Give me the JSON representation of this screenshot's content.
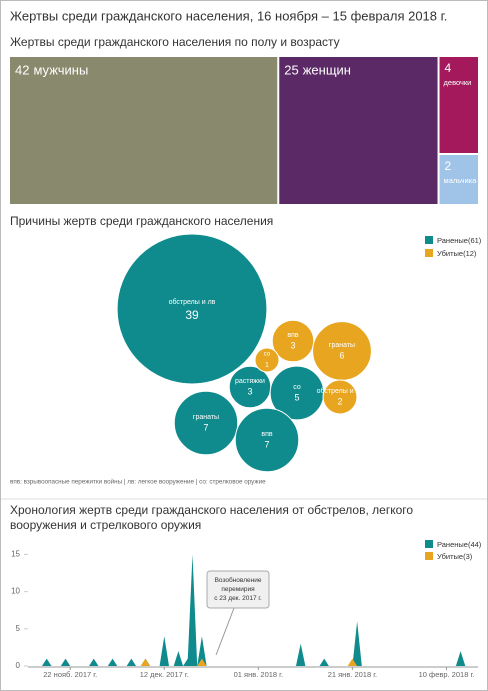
{
  "title": "Жертвы среди гражданского населения, 16 ноября – 15 февраля 2018 г.",
  "chart_data": [
    {
      "type": "treemap",
      "title": "Жертвы среди гражданского населения по полу и возрасту",
      "labels": [
        "мужчины",
        "женщин",
        "девочки",
        "мальчика"
      ],
      "values": [
        42,
        25,
        4,
        2
      ],
      "colors": [
        "#898a6d",
        "#5b2a66",
        "#a3195b",
        "#9fc4e8"
      ]
    },
    {
      "type": "bubble",
      "title": "Причины жертв среди гражданского населения",
      "series": [
        {
          "name": "Раненые(61)",
          "color": "#0f8b8d",
          "labels": [
            "обстрелы и лв",
            "растяжки",
            "со",
            "гранаты",
            "впв"
          ],
          "values": [
            39,
            3,
            5,
            7,
            7
          ]
        },
        {
          "name": "Убитые(12)",
          "color": "#e8a51f",
          "labels": [
            "впв",
            "со",
            "гранаты",
            "обстрелы и лв"
          ],
          "values": [
            3,
            1,
            6,
            2
          ]
        }
      ],
      "note": "впв: взрывоопасные пережитки войны | лв: легкое вооружение | со: стрелковое оружие"
    },
    {
      "type": "area",
      "title": "Хронология жертв среди гражданского населения от обстрелов, легкого вооружения и стрелкового оружия",
      "annotation": "Возобновление перемирия с 23 дек. 2017 г.",
      "annotation_x": "2017-12-23",
      "x": [
        "2017-11-16",
        "2017-11-17",
        "2017-11-18",
        "2017-11-19",
        "2017-11-20",
        "2017-11-21",
        "2017-11-22",
        "2017-11-23",
        "2017-11-24",
        "2017-11-25",
        "2017-11-26",
        "2017-11-27",
        "2017-11-28",
        "2017-11-29",
        "2017-11-30",
        "2017-12-01",
        "2017-12-02",
        "2017-12-03",
        "2017-12-04",
        "2017-12-05",
        "2017-12-06",
        "2017-12-07",
        "2017-12-08",
        "2017-12-09",
        "2017-12-10",
        "2017-12-11",
        "2017-12-12",
        "2017-12-13",
        "2017-12-14",
        "2017-12-15",
        "2017-12-16",
        "2017-12-17",
        "2017-12-18",
        "2017-12-19",
        "2017-12-20",
        "2017-12-21",
        "2017-12-22",
        "2017-12-23",
        "2017-12-24",
        "2017-12-25",
        "2017-12-26",
        "2017-12-27",
        "2017-12-28",
        "2017-12-29",
        "2017-12-30",
        "2017-12-31",
        "2018-01-01",
        "2018-01-02",
        "2018-01-03",
        "2018-01-04",
        "2018-01-05",
        "2018-01-06",
        "2018-01-07",
        "2018-01-08",
        "2018-01-09",
        "2018-01-10",
        "2018-01-11",
        "2018-01-12",
        "2018-01-13",
        "2018-01-14",
        "2018-01-15",
        "2018-01-16",
        "2018-01-17",
        "2018-01-18",
        "2018-01-19",
        "2018-01-20",
        "2018-01-21",
        "2018-01-22",
        "2018-01-23",
        "2018-01-24",
        "2018-01-25",
        "2018-01-26",
        "2018-01-27",
        "2018-01-28",
        "2018-01-29",
        "2018-01-30",
        "2018-01-31",
        "2018-02-01",
        "2018-02-02",
        "2018-02-03",
        "2018-02-04",
        "2018-02-05",
        "2018-02-06",
        "2018-02-07",
        "2018-02-08",
        "2018-02-09",
        "2018-02-10",
        "2018-02-11",
        "2018-02-12",
        "2018-02-13",
        "2018-02-14",
        "2018-02-15"
      ],
      "series": [
        {
          "name": "Раненые(44)",
          "color": "#0f8b8d",
          "values": [
            0,
            1,
            0,
            0,
            0,
            1,
            0,
            0,
            0,
            0,
            0,
            1,
            0,
            0,
            0,
            1,
            0,
            0,
            0,
            1,
            0,
            0,
            1,
            0,
            0,
            0,
            4,
            0,
            0,
            2,
            0,
            1,
            15,
            0,
            4,
            0,
            0,
            0,
            0,
            0,
            0,
            0,
            0,
            0,
            0,
            0,
            0,
            0,
            0,
            0,
            0,
            0,
            0,
            0,
            0,
            3,
            0,
            0,
            0,
            0,
            1,
            0,
            0,
            0,
            0,
            0,
            0,
            6,
            0,
            0,
            0,
            0,
            0,
            0,
            0,
            0,
            0,
            0,
            0,
            0,
            0,
            0,
            0,
            0,
            0,
            0,
            0,
            0,
            0,
            2,
            0,
            0
          ]
        },
        {
          "name": "Убитые(3)",
          "color": "#e8a51f",
          "values": [
            0,
            0,
            0,
            0,
            0,
            0,
            0,
            0,
            0,
            0,
            0,
            0,
            0,
            0,
            0,
            0,
            0,
            0,
            0,
            0,
            0,
            0,
            1,
            0,
            0,
            0,
            0,
            0,
            0,
            0,
            0,
            0,
            0,
            0,
            1,
            0,
            0,
            0,
            0,
            0,
            0,
            0,
            0,
            0,
            0,
            0,
            0,
            0,
            0,
            0,
            0,
            0,
            0,
            0,
            0,
            0,
            0,
            0,
            0,
            0,
            0,
            0,
            0,
            0,
            0,
            0,
            1,
            0,
            0,
            0,
            0,
            0,
            0,
            0,
            0,
            0,
            0,
            0,
            0,
            0,
            0,
            0,
            0,
            0,
            0,
            0,
            0,
            0,
            0,
            0,
            0,
            0
          ]
        }
      ],
      "xlim": [
        "2017-11-16",
        "2018-02-15"
      ],
      "xticks": [
        {
          "value": "2017-11-22",
          "label": "22 нояб. 2017 г."
        },
        {
          "value": "2017-12-12",
          "label": "12 дек. 2017 г."
        },
        {
          "value": "2018-01-01",
          "label": "01 янв. 2018 г."
        },
        {
          "value": "2018-01-21",
          "label": "21 янв. 2018 г."
        },
        {
          "value": "2018-02-10",
          "label": "10 февр. 2018 г."
        }
      ],
      "ylim": [
        0,
        16
      ],
      "yticks": [
        0,
        5,
        10,
        15
      ]
    }
  ]
}
